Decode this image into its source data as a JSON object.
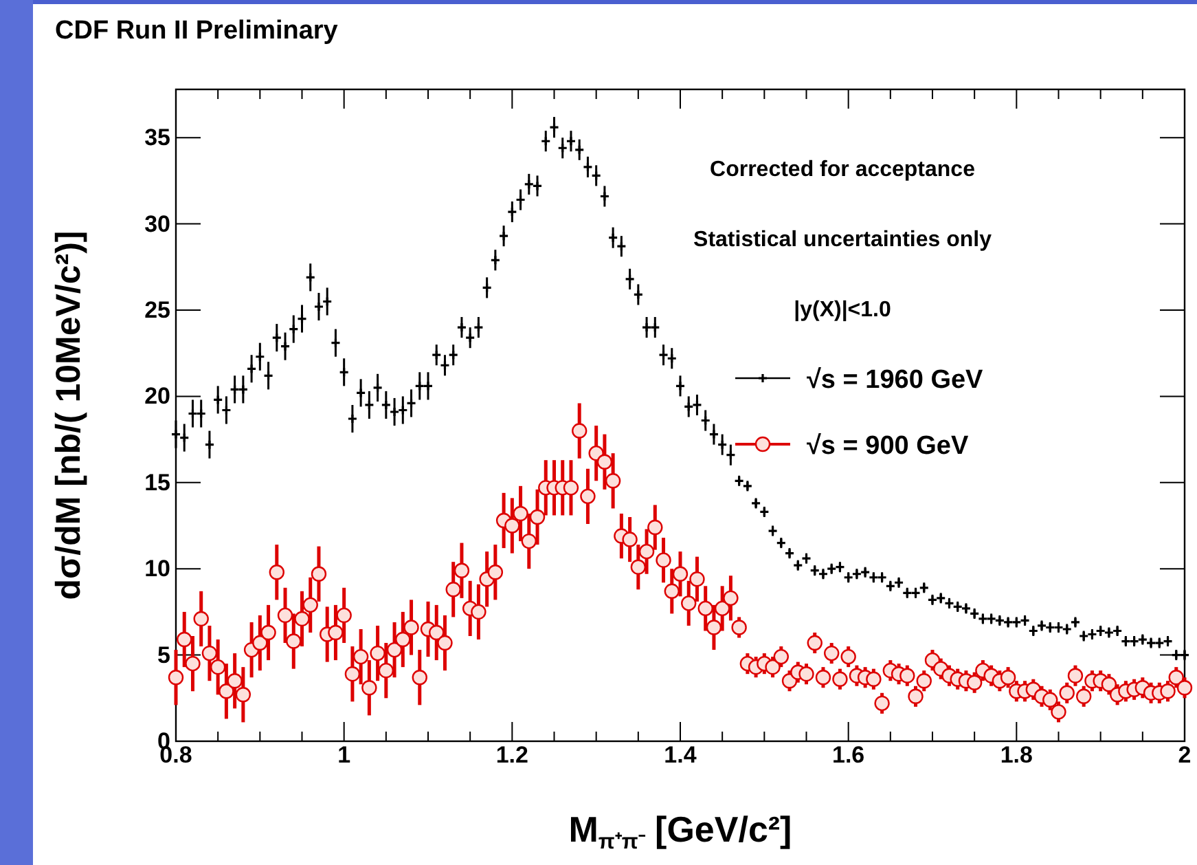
{
  "chart_data": {
    "type": "scatter",
    "title": "CDF Run II Preliminary",
    "xlabel": "M$_{π⁺π⁻}$ [GeV/c²]",
    "ylabel": "dσ/dM [nb/( 10MeV/c²)]",
    "annotations": [
      "Corrected for acceptance",
      "Statistical uncertainties only",
      "|y(X)|<1.0"
    ],
    "xlim": [
      0.8,
      2.0
    ],
    "ylim": [
      0,
      37.8
    ],
    "xticks": [
      0.8,
      1,
      1.2,
      1.4,
      1.6,
      1.8,
      2
    ],
    "yticks": [
      0,
      5,
      10,
      15,
      20,
      25,
      30,
      35
    ],
    "grid": false,
    "legend": "right",
    "x": [
      0.8,
      0.81,
      0.82,
      0.83,
      0.84,
      0.85,
      0.86,
      0.87,
      0.88,
      0.89,
      0.9,
      0.91,
      0.92,
      0.93,
      0.94,
      0.95,
      0.96,
      0.97,
      0.98,
      0.99,
      1.0,
      1.01,
      1.02,
      1.03,
      1.04,
      1.05,
      1.06,
      1.07,
      1.08,
      1.09,
      1.1,
      1.11,
      1.12,
      1.13,
      1.14,
      1.15,
      1.16,
      1.17,
      1.18,
      1.19,
      1.2,
      1.21,
      1.22,
      1.23,
      1.24,
      1.25,
      1.26,
      1.27,
      1.28,
      1.29,
      1.3,
      1.31,
      1.32,
      1.33,
      1.34,
      1.35,
      1.36,
      1.37,
      1.38,
      1.39,
      1.4,
      1.41,
      1.42,
      1.43,
      1.44,
      1.45,
      1.46,
      1.47,
      1.48,
      1.49,
      1.5,
      1.51,
      1.52,
      1.53,
      1.54,
      1.55,
      1.56,
      1.57,
      1.58,
      1.59,
      1.6,
      1.61,
      1.62,
      1.63,
      1.64,
      1.65,
      1.66,
      1.67,
      1.68,
      1.69,
      1.7,
      1.71,
      1.72,
      1.73,
      1.74,
      1.75,
      1.76,
      1.77,
      1.78,
      1.79,
      1.8,
      1.81,
      1.82,
      1.83,
      1.84,
      1.85,
      1.86,
      1.87,
      1.88,
      1.89,
      1.9,
      1.91,
      1.92,
      1.93,
      1.94,
      1.95,
      1.96,
      1.97,
      1.98,
      1.99,
      2.0
    ],
    "series": [
      {
        "name": "√s = 1960 GeV",
        "color": "#000000",
        "marker": "cross",
        "values": [
          17.8,
          17.6,
          19.0,
          19.0,
          17.2,
          19.8,
          19.2,
          20.4,
          20.4,
          21.6,
          22.3,
          21.2,
          23.4,
          22.9,
          23.9,
          24.5,
          26.9,
          25.2,
          25.5,
          23.1,
          21.4,
          18.7,
          20.2,
          19.5,
          20.5,
          19.5,
          19.1,
          19.2,
          19.6,
          20.6,
          20.6,
          22.4,
          21.8,
          22.4,
          24.0,
          23.4,
          24.0,
          26.3,
          27.9,
          29.3,
          30.7,
          31.4,
          32.3,
          32.2,
          34.8,
          35.6,
          34.4,
          34.8,
          34.3,
          33.3,
          32.8,
          31.6,
          29.2,
          28.7,
          26.8,
          25.9,
          24.0,
          24.0,
          22.4,
          22.2,
          20.6,
          19.4,
          19.5,
          18.6,
          17.8,
          17.2,
          16.6,
          15.1,
          14.8,
          13.8,
          13.3,
          12.2,
          11.5,
          10.9,
          10.2,
          10.6,
          9.9,
          9.7,
          10.0,
          10.1,
          9.5,
          9.7,
          9.8,
          9.5,
          9.5,
          9.0,
          9.2,
          8.6,
          8.6,
          8.9,
          8.2,
          8.3,
          8.0,
          7.8,
          7.7,
          7.4,
          7.1,
          7.1,
          7.0,
          6.9,
          6.9,
          7.0,
          6.4,
          6.7,
          6.6,
          6.6,
          6.5,
          6.9,
          6.1,
          6.2,
          6.4,
          6.3,
          6.4,
          5.8,
          5.8,
          5.9,
          5.7,
          5.7,
          5.8,
          5.0,
          5.0
        ],
        "errors": [
          0.8,
          0.8,
          0.8,
          0.8,
          0.8,
          0.8,
          0.8,
          0.8,
          0.8,
          0.8,
          0.8,
          0.8,
          0.8,
          0.8,
          0.8,
          0.8,
          0.8,
          0.8,
          0.8,
          0.8,
          0.8,
          0.8,
          0.8,
          0.8,
          0.8,
          0.8,
          0.8,
          0.8,
          0.8,
          0.8,
          0.8,
          0.6,
          0.6,
          0.6,
          0.6,
          0.6,
          0.6,
          0.6,
          0.6,
          0.6,
          0.6,
          0.6,
          0.6,
          0.6,
          0.6,
          0.6,
          0.6,
          0.6,
          0.6,
          0.6,
          0.6,
          0.6,
          0.6,
          0.6,
          0.6,
          0.6,
          0.6,
          0.6,
          0.6,
          0.6,
          0.6,
          0.6,
          0.6,
          0.6,
          0.6,
          0.6,
          0.6,
          0.3,
          0.3,
          0.3,
          0.3,
          0.3,
          0.3,
          0.3,
          0.3,
          0.3,
          0.3,
          0.3,
          0.3,
          0.3,
          0.3,
          0.3,
          0.3,
          0.3,
          0.3,
          0.3,
          0.3,
          0.3,
          0.3,
          0.3,
          0.3,
          0.3,
          0.3,
          0.3,
          0.3,
          0.3,
          0.3,
          0.3,
          0.3,
          0.3,
          0.3,
          0.3,
          0.3,
          0.3,
          0.3,
          0.3,
          0.3,
          0.3,
          0.3,
          0.3,
          0.3,
          0.3,
          0.3,
          0.3,
          0.3,
          0.3,
          0.3,
          0.3,
          0.3,
          0.3,
          0.3
        ]
      },
      {
        "name": "√s = 900 GeV",
        "color": "#dd0000",
        "marker": "circle",
        "values": [
          3.7,
          5.9,
          4.5,
          7.1,
          5.1,
          4.3,
          2.9,
          3.5,
          2.7,
          5.3,
          5.7,
          6.3,
          9.8,
          7.3,
          5.8,
          7.1,
          7.9,
          9.7,
          6.2,
          6.3,
          7.3,
          3.9,
          4.9,
          3.1,
          5.1,
          4.1,
          5.3,
          5.9,
          6.6,
          3.7,
          6.5,
          6.3,
          5.7,
          8.8,
          9.9,
          7.7,
          7.5,
          9.4,
          9.8,
          12.8,
          12.5,
          13.2,
          11.6,
          13.0,
          14.7,
          14.7,
          14.7,
          14.7,
          18.0,
          14.2,
          16.7,
          16.2,
          15.1,
          11.9,
          11.7,
          10.1,
          11.0,
          12.4,
          10.5,
          8.7,
          9.7,
          8.0,
          9.4,
          7.7,
          6.6,
          7.7,
          8.3,
          6.6,
          4.5,
          4.3,
          4.5,
          4.3,
          4.9,
          3.5,
          4.0,
          3.9,
          5.7,
          3.7,
          5.1,
          3.6,
          4.9,
          3.8,
          3.7,
          3.6,
          2.2,
          4.1,
          3.9,
          3.8,
          2.6,
          3.5,
          4.7,
          4.2,
          3.8,
          3.6,
          3.5,
          3.4,
          4.1,
          3.8,
          3.5,
          3.7,
          2.9,
          2.9,
          3.0,
          2.6,
          2.4,
          1.7,
          2.8,
          3.8,
          2.6,
          3.5,
          3.5,
          3.3,
          2.7,
          2.9,
          3.0,
          3.1,
          2.8,
          2.8,
          2.9,
          3.7,
          3.1
        ],
        "errors": [
          1.6,
          1.6,
          1.6,
          1.6,
          1.6,
          1.6,
          1.6,
          1.6,
          1.6,
          1.6,
          1.6,
          1.6,
          1.6,
          1.6,
          1.6,
          1.6,
          1.6,
          1.6,
          1.6,
          1.6,
          1.6,
          1.6,
          1.6,
          1.6,
          1.6,
          1.6,
          1.6,
          1.6,
          1.6,
          1.6,
          1.6,
          1.6,
          1.6,
          1.6,
          1.6,
          1.6,
          1.6,
          1.6,
          1.6,
          1.6,
          1.6,
          1.6,
          1.6,
          1.6,
          1.6,
          1.6,
          1.6,
          1.6,
          1.6,
          1.6,
          1.6,
          1.6,
          1.6,
          1.3,
          1.3,
          1.3,
          1.3,
          1.3,
          1.3,
          1.3,
          1.3,
          1.3,
          1.3,
          1.3,
          1.3,
          1.3,
          1.3,
          0.6,
          0.6,
          0.6,
          0.6,
          0.6,
          0.6,
          0.6,
          0.6,
          0.6,
          0.6,
          0.6,
          0.6,
          0.6,
          0.6,
          0.6,
          0.6,
          0.6,
          0.6,
          0.6,
          0.6,
          0.6,
          0.6,
          0.6,
          0.6,
          0.6,
          0.6,
          0.6,
          0.6,
          0.6,
          0.6,
          0.6,
          0.6,
          0.6,
          0.6,
          0.6,
          0.6,
          0.6,
          0.6,
          0.6,
          0.6,
          0.6,
          0.6,
          0.6,
          0.6,
          0.6,
          0.6,
          0.6,
          0.6,
          0.6,
          0.6,
          0.6,
          0.6,
          0.6,
          0.6
        ]
      }
    ]
  }
}
